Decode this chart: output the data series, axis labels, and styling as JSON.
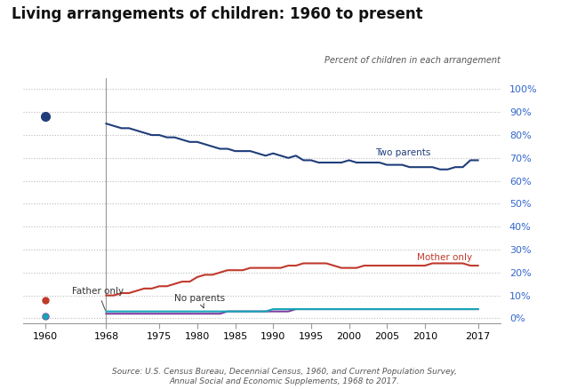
{
  "title": "Living arrangements of children: 1960 to present",
  "subtitle": "Percent of children in each arrangement",
  "source": "Source: U.S. Census Bureau, Decennial Census, 1960, and Current Population Survey,\nAnnual Social and Economic Supplements, 1968 to 2017.",
  "background_color": "#ffffff",
  "two_parents": {
    "years": [
      1960,
      1968,
      1969,
      1970,
      1971,
      1972,
      1973,
      1974,
      1975,
      1976,
      1977,
      1978,
      1979,
      1980,
      1981,
      1982,
      1983,
      1984,
      1985,
      1986,
      1987,
      1988,
      1989,
      1990,
      1991,
      1992,
      1993,
      1994,
      1995,
      1996,
      1997,
      1998,
      1999,
      2000,
      2001,
      2002,
      2003,
      2004,
      2005,
      2006,
      2007,
      2008,
      2009,
      2010,
      2011,
      2012,
      2013,
      2014,
      2015,
      2016,
      2017
    ],
    "values": [
      88,
      85,
      84,
      83,
      83,
      82,
      81,
      80,
      80,
      79,
      79,
      78,
      77,
      77,
      76,
      75,
      74,
      74,
      73,
      73,
      73,
      72,
      71,
      72,
      71,
      70,
      71,
      69,
      69,
      68,
      68,
      68,
      68,
      69,
      68,
      68,
      68,
      68,
      67,
      67,
      67,
      66,
      66,
      66,
      66,
      65,
      65,
      66,
      66,
      69,
      69
    ],
    "color": "#1f3d7a"
  },
  "mother_only": {
    "years": [
      1968,
      1969,
      1970,
      1971,
      1972,
      1973,
      1974,
      1975,
      1976,
      1977,
      1978,
      1979,
      1980,
      1981,
      1982,
      1983,
      1984,
      1985,
      1986,
      1987,
      1988,
      1989,
      1990,
      1991,
      1992,
      1993,
      1994,
      1995,
      1996,
      1997,
      1998,
      1999,
      2000,
      2001,
      2002,
      2003,
      2004,
      2005,
      2006,
      2007,
      2008,
      2009,
      2010,
      2011,
      2012,
      2013,
      2014,
      2015,
      2016,
      2017
    ],
    "values": [
      10,
      10,
      11,
      11,
      12,
      13,
      13,
      14,
      14,
      15,
      16,
      16,
      18,
      19,
      19,
      20,
      21,
      21,
      21,
      22,
      22,
      22,
      22,
      22,
      23,
      23,
      24,
      24,
      24,
      24,
      23,
      22,
      22,
      22,
      23,
      23,
      23,
      23,
      23,
      23,
      23,
      23,
      23,
      24,
      24,
      24,
      24,
      24,
      23,
      23
    ],
    "color": "#c0392b",
    "dot_1960_value": 8
  },
  "father_only": {
    "years": [
      1960,
      1968,
      1969,
      1970,
      1971,
      1972,
      1973,
      1974,
      1975,
      1976,
      1977,
      1978,
      1979,
      1980,
      1981,
      1982,
      1983,
      1984,
      1985,
      1986,
      1987,
      1988,
      1989,
      1990,
      1991,
      1992,
      1993,
      1994,
      1995,
      1996,
      1997,
      1998,
      1999,
      2000,
      2001,
      2002,
      2003,
      2004,
      2005,
      2006,
      2007,
      2008,
      2009,
      2010,
      2011,
      2012,
      2013,
      2014,
      2015,
      2016,
      2017
    ],
    "values": [
      1,
      2,
      2,
      2,
      2,
      2,
      2,
      2,
      2,
      2,
      2,
      2,
      2,
      2,
      2,
      2,
      2,
      3,
      3,
      3,
      3,
      3,
      3,
      3,
      3,
      3,
      4,
      4,
      4,
      4,
      4,
      4,
      4,
      4,
      4,
      4,
      4,
      4,
      4,
      4,
      4,
      4,
      4,
      4,
      4,
      4,
      4,
      4,
      4,
      4,
      4
    ],
    "color": "#7b3f9e"
  },
  "no_parents": {
    "years": [
      1968,
      1969,
      1970,
      1971,
      1972,
      1973,
      1974,
      1975,
      1976,
      1977,
      1978,
      1979,
      1980,
      1981,
      1982,
      1983,
      1984,
      1985,
      1986,
      1987,
      1988,
      1989,
      1990,
      1991,
      1992,
      1993,
      1994,
      1995,
      1996,
      1997,
      1998,
      1999,
      2000,
      2001,
      2002,
      2003,
      2004,
      2005,
      2006,
      2007,
      2008,
      2009,
      2010,
      2011,
      2012,
      2013,
      2014,
      2015,
      2016,
      2017
    ],
    "values": [
      3,
      3,
      3,
      3,
      3,
      3,
      3,
      3,
      3,
      3,
      3,
      3,
      3,
      3,
      3,
      3,
      3,
      3,
      3,
      3,
      3,
      3,
      4,
      4,
      4,
      4,
      4,
      4,
      4,
      4,
      4,
      4,
      4,
      4,
      4,
      4,
      4,
      4,
      4,
      4,
      4,
      4,
      4,
      4,
      4,
      4,
      4,
      4,
      4,
      4
    ],
    "color": "#17a5b8"
  },
  "xlim": [
    1957,
    2020
  ],
  "ylim": [
    -2,
    105
  ],
  "xticks": [
    1960,
    1968,
    1975,
    1980,
    1985,
    1990,
    1995,
    2000,
    2005,
    2010,
    2017
  ],
  "yticks": [
    0,
    10,
    20,
    30,
    40,
    50,
    60,
    70,
    80,
    90,
    100
  ],
  "ytick_labels": [
    "0%",
    "10%",
    "20%",
    "30%",
    "40%",
    "50%",
    "60%",
    "70%",
    "80%",
    "90%",
    "100%"
  ]
}
